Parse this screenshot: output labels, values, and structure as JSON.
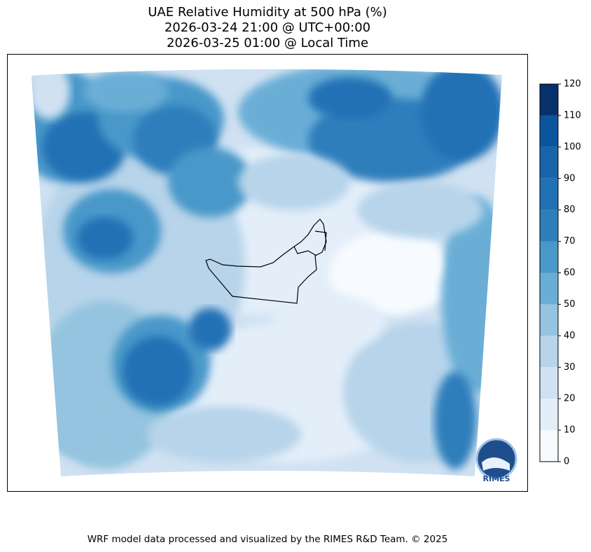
{
  "title": [
    "UAE Relative Humidity at 500 hPa (%)",
    "2026-03-24 21:00 @ UTC+00:00",
    "2026-03-25 01:00 @ Local Time"
  ],
  "colorbar": {
    "lim": [
      0,
      120
    ],
    "ticks": [
      0,
      10,
      20,
      30,
      40,
      50,
      60,
      70,
      80,
      90,
      100,
      110,
      120
    ],
    "colors": [
      "#f7fbff",
      "#e3eef9",
      "#d0e1f2",
      "#b7d4ea",
      "#94c4df",
      "#6aaed6",
      "#4a98c9",
      "#2e7ebc",
      "#2171b5",
      "#1864aa",
      "#0b559f",
      "#08306b"
    ]
  },
  "logo": "RIMES",
  "footer": "WRF model data processed and visualized by the RIMES R&D Team. © 2025"
}
